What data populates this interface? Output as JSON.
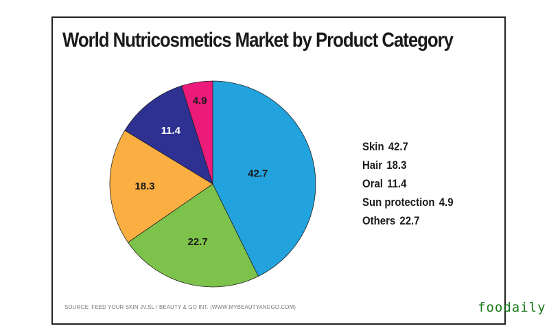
{
  "title": "World Nutricosmetics Market by Product Category",
  "legend": [
    {
      "label": "Skin",
      "value": "42.7"
    },
    {
      "label": "Hair",
      "value": "18.3"
    },
    {
      "label": "Oral",
      "value": "11.4"
    },
    {
      "label": "Sun protection",
      "value": "4.9"
    },
    {
      "label": "Others",
      "value": "22.7"
    }
  ],
  "source": "SOURCE: FEED YOUR SKIN JV,SL / BEAUTY & GO INT. (WWW.MYBEAUTYANDGO.COM)",
  "watermark": "foodaily",
  "colors": {
    "Skin": "#23a3dd",
    "Others": "#7dc24a",
    "Hair": "#fbaf42",
    "Oral": "#2e3192",
    "Sun protection": "#ec1a7a"
  },
  "chart_data": {
    "type": "pie",
    "title": "World Nutricosmetics Market by Product Category",
    "categories": [
      "Skin",
      "Others",
      "Hair",
      "Oral",
      "Sun protection"
    ],
    "values": [
      42.7,
      22.7,
      18.3,
      11.4,
      4.9
    ],
    "slice_labels": [
      "42.7",
      "22.7",
      "18.3",
      "11.4",
      "4.9"
    ],
    "colors": [
      "#23a3dd",
      "#7dc24a",
      "#fbaf42",
      "#2e3192",
      "#ec1a7a"
    ],
    "start_angle": "12 o'clock, clockwise",
    "legend_position": "right",
    "source": "SOURCE: FEED YOUR SKIN JV,SL / BEAUTY & GO INT. (WWW.MYBEAUTYANDGO.COM)"
  }
}
